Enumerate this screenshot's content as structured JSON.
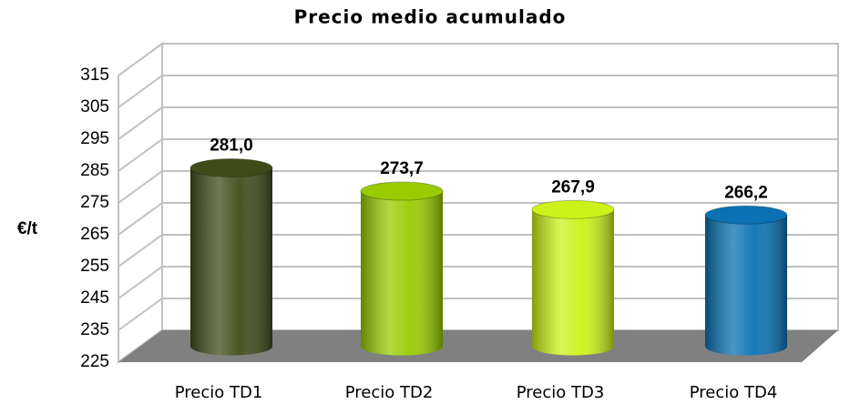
{
  "chart_data": {
    "type": "bar",
    "title": "Precio medio acumulado",
    "ylabel": "€/t",
    "categories": [
      "Precio TD1",
      "Precio TD2",
      "Precio TD3",
      "Precio TD4"
    ],
    "values": [
      281.0,
      273.7,
      267.9,
      266.2
    ],
    "value_labels": [
      "281,0",
      "273,7",
      "267,9",
      "266,2"
    ],
    "colors": [
      "#3f4c1a",
      "#98cc00",
      "#ccf21a",
      "#0a72b4"
    ],
    "ylim": [
      225,
      315
    ],
    "yticks": [
      225,
      235,
      245,
      255,
      265,
      275,
      285,
      295,
      305,
      315
    ],
    "grid": true
  }
}
